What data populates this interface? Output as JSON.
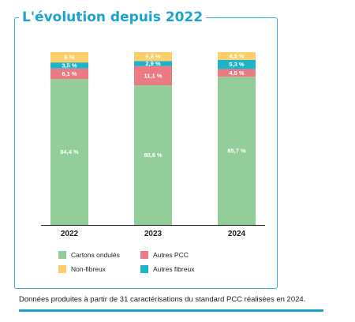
{
  "title": "L'évolution depuis 2022",
  "footnote": "Données produites à partir de 31 caractérisations du standard PCC réalisées en 2024.",
  "colors": {
    "frame": "#2fb0d6",
    "title": "#1aa3d0",
    "Cartons ondulés": "#93ce9a",
    "Autres PCC": "#ea7b85",
    "Autres fibreux": "#1fb3c9",
    "Non-fibreux": "#fbcf6a"
  },
  "legend": [
    {
      "label": "Cartons ondulés",
      "color": "#93ce9a"
    },
    {
      "label": "Autres PCC",
      "color": "#ea7b85"
    },
    {
      "label": "Non-fibreux",
      "color": "#fbcf6a"
    },
    {
      "label": "Autres fibreux",
      "color": "#1fb3c9"
    }
  ],
  "chart_data": {
    "type": "bar",
    "stacked": true,
    "categories": [
      "2022",
      "2023",
      "2024"
    ],
    "series": [
      {
        "name": "Cartons ondulés",
        "values": [
          84.4,
          80.8,
          85.7
        ],
        "labels": [
          "84,4 %",
          "80,8 %",
          "85,7 %"
        ]
      },
      {
        "name": "Autres PCC",
        "values": [
          6.1,
          11.1,
          4.5
        ],
        "labels": [
          "6,1 %",
          "11,1 %",
          "4,5 %"
        ]
      },
      {
        "name": "Autres fibreux",
        "values": [
          3.5,
          2.9,
          5.3
        ],
        "labels": [
          "3,5 %",
          "2,9 %",
          "5,3 %"
        ]
      },
      {
        "name": "Non-fibreux",
        "values": [
          6,
          5.2,
          4.5
        ],
        "labels": [
          "6 %",
          "5,2 %",
          "4,5 %"
        ]
      }
    ],
    "ylim": [
      0,
      100
    ],
    "grid": false,
    "legend_position": "bottom"
  }
}
